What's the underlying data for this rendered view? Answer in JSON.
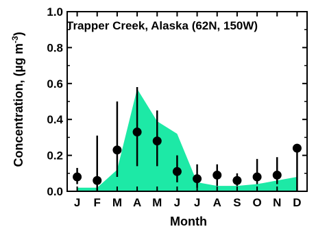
{
  "chart_data": {
    "type": "scatter",
    "title": "Trapper Creek, Alaska (62N, 150W)",
    "xlabel": "Month",
    "ylabel": "Concentration, (µg m",
    "ylabel_unit_exponent": "-3",
    "ylabel_suffix": ")",
    "categories": [
      "J",
      "F",
      "M",
      "A",
      "M",
      "J",
      "J",
      "A",
      "S",
      "O",
      "N",
      "D"
    ],
    "ylim": [
      0.0,
      1.0
    ],
    "yticks": [
      "0.0",
      "0.2",
      "0.4",
      "0.6",
      "0.8",
      "1.0"
    ],
    "series": [
      {
        "kind": "points-with-error-bars",
        "color": "#000000",
        "values": [
          0.08,
          0.06,
          0.23,
          0.33,
          0.28,
          0.11,
          0.07,
          0.09,
          0.06,
          0.08,
          0.09,
          0.24
        ],
        "err_low": [
          0.04,
          0.0,
          0.08,
          0.14,
          0.14,
          0.05,
          0.02,
          0.03,
          0.03,
          0.04,
          0.04,
          0.0
        ],
        "err_high": [
          0.13,
          0.31,
          0.5,
          0.58,
          0.45,
          0.2,
          0.15,
          0.15,
          0.1,
          0.18,
          0.19,
          0.24
        ]
      },
      {
        "kind": "area",
        "color": "#1de9a6",
        "values": [
          0.02,
          0.02,
          0.12,
          0.57,
          0.39,
          0.32,
          0.05,
          0.03,
          0.03,
          0.04,
          0.06,
          0.08
        ]
      }
    ]
  }
}
